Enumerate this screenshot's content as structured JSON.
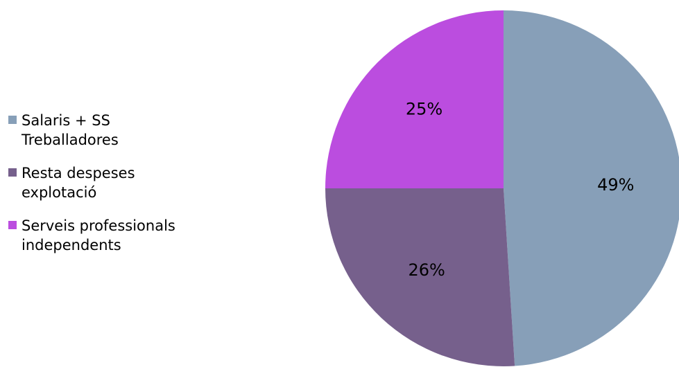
{
  "chart_data": {
    "type": "pie",
    "title": "",
    "slices": [
      {
        "label": "Salaris + SS\nTreballadores",
        "value": 49,
        "display": "49%",
        "color": "#879fb8"
      },
      {
        "label": "Resta despeses\nexplotació",
        "value": 26,
        "display": "26%",
        "color": "#76608c"
      },
      {
        "label": "Serveis professionals\nindependents",
        "value": 25,
        "display": "25%",
        "color": "#bb4ddf"
      }
    ],
    "legend_position": "left",
    "start_angle_deg": 0,
    "direction": "clockwise"
  }
}
